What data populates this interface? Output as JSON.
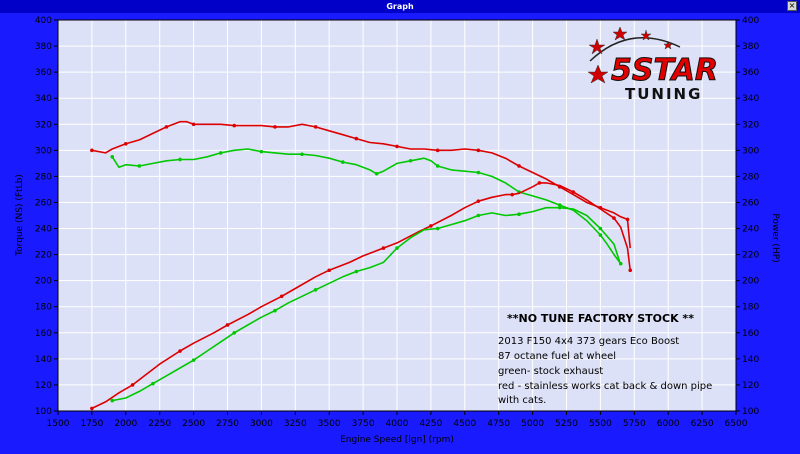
{
  "window": {
    "title": "Graph",
    "close_label": "×"
  },
  "logo": {
    "brand": "5STAR",
    "sub": "TUNING"
  },
  "annotations": {
    "heading": "**NO TUNE FACTORY STOCK **",
    "lines": [
      "2013 F150 4x4 373 gears  Eco Boost",
      "87 octane fuel at wheel",
      "green- stock exhaust",
      "red - stainless works cat back & down pipe",
      " with cats."
    ]
  },
  "colors": {
    "background": "#1a1aff",
    "plot_bg": "#dde1f7",
    "grid": "#ffffff",
    "red": "#dc0000",
    "green": "#00c800"
  },
  "chart_data": {
    "type": "line",
    "title": "",
    "xlabel": "Engine Speed [lgn] (rpm)",
    "ylabel": "Torque (NS) (FtLb)",
    "y2label": "Power (HP)",
    "xlim": [
      1500,
      6500
    ],
    "ylim": [
      100,
      400
    ],
    "y2lim": [
      100,
      400
    ],
    "x_ticks": [
      "1500",
      "1750",
      "2000",
      "2250",
      "2500",
      "2750",
      "3000",
      "3250",
      "3500",
      "3750",
      "4000",
      "4250",
      "4500",
      "4750",
      "5000",
      "5250",
      "5500",
      "5750",
      "6000",
      "6250",
      "6500"
    ],
    "y_ticks": [
      "100",
      "120",
      "140",
      "160",
      "180",
      "200",
      "220",
      "240",
      "260",
      "280",
      "300",
      "320",
      "340",
      "360",
      "380",
      "400"
    ],
    "grid": true,
    "series": [
      {
        "color": "#dc0000",
        "axis": "left",
        "x": [
          1750,
          1850,
          1900,
          2000,
          2100,
          2200,
          2300,
          2400,
          2450,
          2500,
          2600,
          2700,
          2800,
          2900,
          3000,
          3100,
          3200,
          3300,
          3400,
          3500,
          3600,
          3700,
          3800,
          3900,
          4000,
          4100,
          4200,
          4300,
          4400,
          4500,
          4600,
          4700,
          4800,
          4900,
          5000,
          5100,
          5200,
          5300,
          5400,
          5500,
          5600,
          5650,
          5700,
          5720
        ],
        "values": [
          300,
          298,
          301,
          305,
          308,
          313,
          318,
          322,
          322,
          320,
          320,
          320,
          319,
          319,
          319,
          318,
          318,
          320,
          318,
          315,
          312,
          309,
          306,
          305,
          303,
          301,
          301,
          300,
          300,
          301,
          300,
          298,
          294,
          288,
          283,
          278,
          272,
          266,
          260,
          256,
          252,
          249,
          247,
          225
        ]
      },
      {
        "color": "#00c800",
        "axis": "left",
        "x": [
          1900,
          1950,
          2000,
          2100,
          2200,
          2300,
          2400,
          2500,
          2600,
          2700,
          2800,
          2900,
          3000,
          3100,
          3200,
          3300,
          3400,
          3500,
          3600,
          3700,
          3800,
          3850,
          3900,
          4000,
          4100,
          4200,
          4250,
          4300,
          4400,
          4500,
          4600,
          4700,
          4800,
          4900,
          5000,
          5100,
          5200,
          5300,
          5400,
          5500,
          5550,
          5600,
          5650
        ],
        "values": [
          295,
          287,
          289,
          288,
          290,
          292,
          293,
          293,
          295,
          298,
          300,
          301,
          299,
          298,
          297,
          297,
          296,
          294,
          291,
          289,
          285,
          282,
          284,
          290,
          292,
          294,
          292,
          288,
          285,
          284,
          283,
          280,
          275,
          268,
          265,
          262,
          258,
          254,
          246,
          235,
          228,
          220,
          213
        ]
      },
      {
        "color": "#dc0000",
        "axis": "right",
        "x": [
          1750,
          1850,
          1950,
          2050,
          2150,
          2250,
          2400,
          2500,
          2650,
          2750,
          2900,
          3000,
          3150,
          3250,
          3400,
          3500,
          3650,
          3750,
          3900,
          4000,
          4150,
          4250,
          4400,
          4500,
          4600,
          4700,
          4800,
          4850,
          4900,
          5000,
          5050,
          5100,
          5200,
          5300,
          5400,
          5500,
          5600,
          5650,
          5700,
          5720
        ],
        "values": [
          102,
          107,
          114,
          120,
          128,
          136,
          146,
          152,
          160,
          166,
          174,
          180,
          188,
          194,
          203,
          208,
          214,
          219,
          225,
          229,
          237,
          242,
          250,
          256,
          261,
          264,
          266,
          266,
          267,
          272,
          275,
          275,
          273,
          268,
          262,
          255,
          248,
          241,
          225,
          208
        ]
      },
      {
        "color": "#00c800",
        "axis": "right",
        "x": [
          1900,
          2000,
          2100,
          2200,
          2300,
          2400,
          2500,
          2600,
          2700,
          2800,
          2900,
          3000,
          3100,
          3200,
          3300,
          3400,
          3500,
          3600,
          3700,
          3800,
          3900,
          4000,
          4100,
          4200,
          4300,
          4400,
          4500,
          4600,
          4700,
          4800,
          4900,
          5000,
          5100,
          5200,
          5300,
          5400,
          5500,
          5600,
          5650
        ],
        "values": [
          108,
          110,
          115,
          121,
          127,
          133,
          139,
          146,
          153,
          160,
          166,
          172,
          177,
          183,
          188,
          193,
          198,
          203,
          207,
          210,
          214,
          225,
          233,
          239,
          240,
          243,
          246,
          250,
          252,
          250,
          251,
          253,
          256,
          256,
          255,
          250,
          240,
          228,
          212
        ]
      }
    ]
  }
}
